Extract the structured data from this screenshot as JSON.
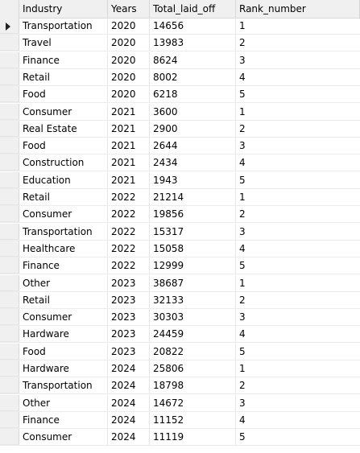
{
  "columns": [
    "Industry",
    "Years",
    "Total_laid_off",
    "Rank_number"
  ],
  "rows": [
    {
      "industry": "Transportation",
      "years": "2020",
      "total": "14656",
      "rank": "1"
    },
    {
      "industry": "Travel",
      "years": "2020",
      "total": "13983",
      "rank": "2"
    },
    {
      "industry": "Finance",
      "years": "2020",
      "total": "8624",
      "rank": "3"
    },
    {
      "industry": "Retail",
      "years": "2020",
      "total": "8002",
      "rank": "4"
    },
    {
      "industry": "Food",
      "years": "2020",
      "total": "6218",
      "rank": "5"
    },
    {
      "industry": "Consumer",
      "years": "2021",
      "total": "3600",
      "rank": "1"
    },
    {
      "industry": "Real Estate",
      "years": "2021",
      "total": "2900",
      "rank": "2"
    },
    {
      "industry": "Food",
      "years": "2021",
      "total": "2644",
      "rank": "3"
    },
    {
      "industry": "Construction",
      "years": "2021",
      "total": "2434",
      "rank": "4"
    },
    {
      "industry": "Education",
      "years": "2021",
      "total": "1943",
      "rank": "5"
    },
    {
      "industry": "Retail",
      "years": "2022",
      "total": "21214",
      "rank": "1"
    },
    {
      "industry": "Consumer",
      "years": "2022",
      "total": "19856",
      "rank": "2"
    },
    {
      "industry": "Transportation",
      "years": "2022",
      "total": "15317",
      "rank": "3"
    },
    {
      "industry": "Healthcare",
      "years": "2022",
      "total": "15058",
      "rank": "4"
    },
    {
      "industry": "Finance",
      "years": "2022",
      "total": "12999",
      "rank": "5"
    },
    {
      "industry": "Other",
      "years": "2023",
      "total": "38687",
      "rank": "1"
    },
    {
      "industry": "Retail",
      "years": "2023",
      "total": "32133",
      "rank": "2"
    },
    {
      "industry": "Consumer",
      "years": "2023",
      "total": "30303",
      "rank": "3"
    },
    {
      "industry": "Hardware",
      "years": "2023",
      "total": "24459",
      "rank": "4"
    },
    {
      "industry": "Food",
      "years": "2023",
      "total": "20822",
      "rank": "5"
    },
    {
      "industry": "Hardware",
      "years": "2024",
      "total": "25806",
      "rank": "1"
    },
    {
      "industry": "Transportation",
      "years": "2024",
      "total": "18798",
      "rank": "2"
    },
    {
      "industry": "Other",
      "years": "2024",
      "total": "14672",
      "rank": "3"
    },
    {
      "industry": "Finance",
      "years": "2024",
      "total": "11152",
      "rank": "4"
    },
    {
      "industry": "Consumer",
      "years": "2024",
      "total": "11119",
      "rank": "5"
    }
  ],
  "current_row_icon": "row-pointer-arrow-icon"
}
